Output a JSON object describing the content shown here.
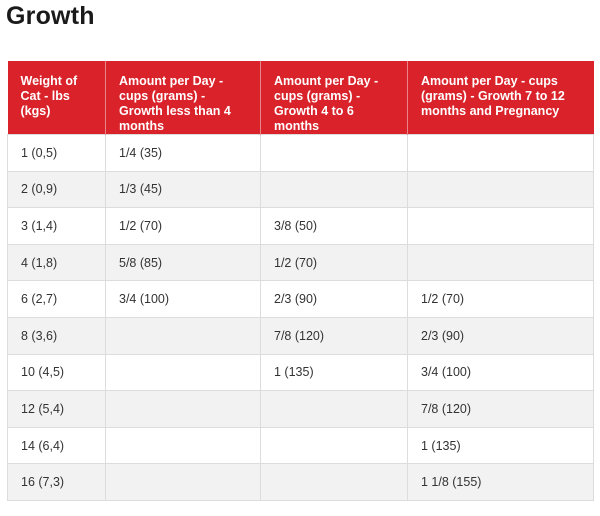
{
  "page": {
    "title": "Growth"
  },
  "table": {
    "headers": [
      "Weight of Cat - lbs (kgs)",
      "Amount per Day - cups (grams) - Growth less than 4 months",
      "Amount per Day - cups (grams) - Growth 4 to 6 months",
      "Amount per Day - cups (grams) - Growth 7 to 12 months and Pregnancy"
    ],
    "rows": [
      [
        "1 (0,5)",
        "1/4 (35)",
        "",
        ""
      ],
      [
        "2 (0,9)",
        "1/3 (45)",
        "",
        ""
      ],
      [
        "3 (1,4)",
        "1/2 (70)",
        "3/8 (50)",
        ""
      ],
      [
        "4 (1,8)",
        "5/8 (85)",
        "1/2 (70)",
        ""
      ],
      [
        "6 (2,7)",
        "3/4 (100)",
        "2/3 (90)",
        "1/2 (70)"
      ],
      [
        "8 (3,6)",
        "",
        "7/8 (120)",
        "2/3 (90)"
      ],
      [
        "10 (4,5)",
        "",
        "1 (135)",
        "3/4 (100)"
      ],
      [
        "12 (5,4)",
        "",
        "",
        "7/8 (120)"
      ],
      [
        "14 (6,4)",
        "",
        "",
        "1 (135)"
      ],
      [
        "16 (7,3)",
        "",
        "",
        "1 1/8 (155)"
      ]
    ]
  },
  "colors": {
    "header_background": "#d9222a",
    "header_text": "#ffffff",
    "stripe_background": "#f2f2f2",
    "border": "#dcdcdc"
  }
}
